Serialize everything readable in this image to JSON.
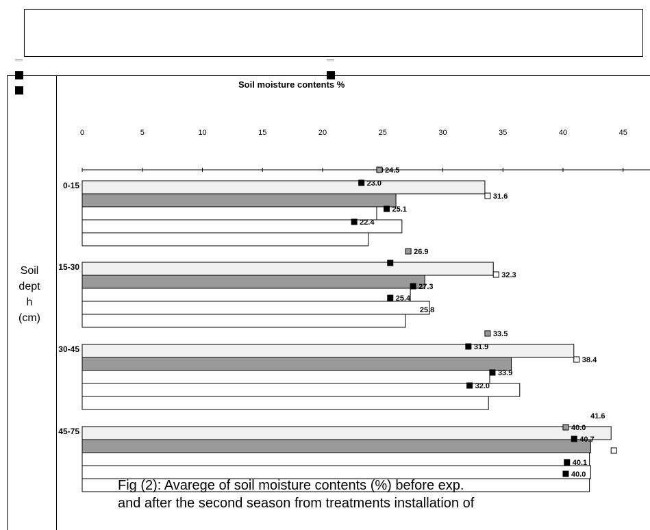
{
  "chart_data": {
    "type": "bar",
    "orientation": "horizontal",
    "title": "Soil moisture contents %",
    "ylabel": "Soil depth (cm)",
    "ylabel_lines": [
      "Soil",
      "dept",
      "h",
      "(cm)"
    ],
    "xlim": [
      0,
      45
    ],
    "x_ticks": [
      "0",
      "5",
      "10",
      "15",
      "20",
      "25",
      "30",
      "35",
      "40",
      "45"
    ],
    "categories": [
      "0-15",
      "15-30",
      "30-45",
      "45-75"
    ],
    "series": [
      {
        "values": [
          33.5,
          34.2,
          40.9,
          44.0
        ],
        "fill": "#f0f0f0"
      },
      {
        "values": [
          26.1,
          28.5,
          35.7,
          42.3
        ],
        "fill": "#9a9a9a"
      },
      {
        "values": [
          24.5,
          27.3,
          33.9,
          42.2
        ],
        "fill": "#ffffff"
      },
      {
        "values": [
          26.6,
          28.9,
          36.4,
          42.3
        ],
        "fill": "#ffffff"
      },
      {
        "values": [
          23.8,
          26.9,
          33.8,
          42.2
        ],
        "fill": "#ffffff"
      },
      {
        "values": [
          null,
          null,
          null,
          null
        ],
        "fill": "#ffffff"
      }
    ],
    "data_labels": [
      [
        {
          "text": "24.5",
          "x": 24.5,
          "marker": "gray"
        },
        {
          "text": "23.0",
          "x": 23.0,
          "marker": "black"
        },
        {
          "text": "31.6",
          "x": 33.5,
          "marker": "white"
        },
        {
          "text": "25.1",
          "x": 25.1,
          "marker": "black"
        },
        {
          "text": "22.4",
          "x": 22.4,
          "marker": "black"
        }
      ],
      [
        {
          "text": "26.9",
          "x": 26.9,
          "marker": "gray"
        },
        {
          "text": "",
          "x": 25.4,
          "marker": "black"
        },
        {
          "text": "32.3",
          "x": 34.2,
          "marker": "white"
        },
        {
          "text": "27.3",
          "x": 27.3,
          "marker": "black"
        },
        {
          "text": "25.4",
          "x": 25.4,
          "marker": "black"
        },
        {
          "text": "25.8",
          "x": 27.4,
          "marker": "none"
        }
      ],
      [
        {
          "text": "33.5",
          "x": 33.5,
          "marker": "gray"
        },
        {
          "text": "31.9",
          "x": 31.9,
          "marker": "black"
        },
        {
          "text": "38.4",
          "x": 40.9,
          "marker": "white"
        },
        {
          "text": "33.9",
          "x": 33.9,
          "marker": "black"
        },
        {
          "text": "32.0",
          "x": 32.0,
          "marker": "black"
        }
      ],
      [
        {
          "text": "41.6",
          "x": 41.6,
          "marker": "none"
        },
        {
          "text": "40.0",
          "x": 40.0,
          "marker": "gray"
        },
        {
          "text": "40.7",
          "x": 40.7,
          "marker": "black"
        },
        {
          "text": "",
          "x": 44.0,
          "marker": "white"
        },
        {
          "text": "40.1",
          "x": 40.1,
          "marker": "black"
        },
        {
          "text": "40.0",
          "x": 40.0,
          "marker": "black"
        }
      ]
    ],
    "grid": false,
    "legend": "none"
  },
  "caption": {
    "line1": "Fig (2):  Avarege of soil moisture contents (%) before exp.",
    "line2": "and after the second season from treatments installation of"
  }
}
